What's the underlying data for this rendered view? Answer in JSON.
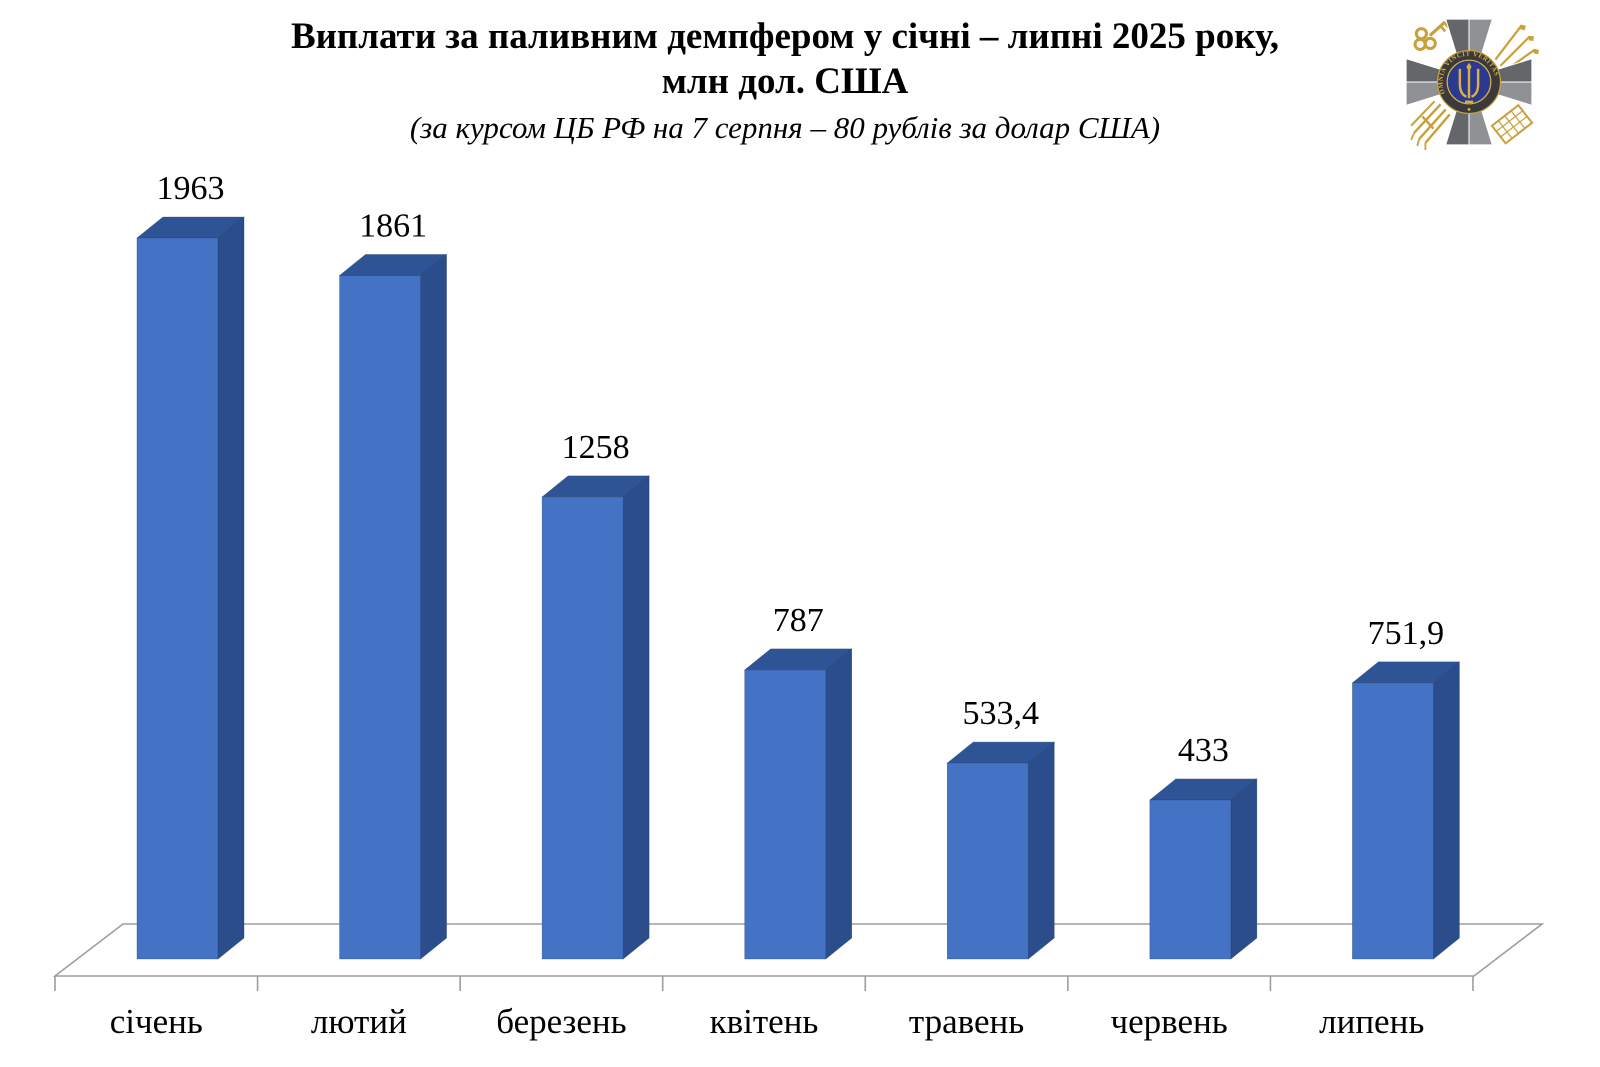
{
  "page": {
    "background": "#ffffff"
  },
  "header": {
    "title_line1": "Виплати за паливним демпфером у січні – липні 2025 року,",
    "title_line2": "млн дол. США",
    "subtitle": "(за курсом ЦБ РФ на 7 серпня – 80 рублів за долар США)"
  },
  "emblem": {
    "name": "defence-intelligence-of-ukraine-emblem",
    "motto": "OMNIA VINCIT VERITAS",
    "colors": {
      "cross_dark": "#64666a",
      "cross_light": "#8f9194",
      "ring": "#3a3a3c",
      "center_blue": "#2b3990",
      "gold": "#c9a13b",
      "gold_bright": "#d9b13f"
    }
  },
  "chart_data": {
    "type": "bar",
    "style": "3d",
    "title": "Виплати за паливним демпфером у січні – липні 2025 року, млн дол. США",
    "subtitle": "(за курсом ЦБ РФ на 7 серпня – 80 рублів за долар США)",
    "categories": [
      "січень",
      "лютий",
      "березень",
      "квітень",
      "травень",
      "червень",
      "липень"
    ],
    "values": [
      1963,
      1861,
      1258,
      787,
      533.4,
      433,
      751.9
    ],
    "value_labels": [
      "1963",
      "1861",
      "1258",
      "787",
      "533,4",
      "433",
      "751,9"
    ],
    "xlabel": "",
    "ylabel": "",
    "ylim": [
      0,
      2100
    ],
    "grid": false,
    "legend": null,
    "bar_colors": {
      "front": "#4472c4",
      "side": "#2c4d8c",
      "top": "#2f5496",
      "edge": "#24406f"
    },
    "axis_color": "#9d9d9d",
    "label_color": "#000000"
  }
}
